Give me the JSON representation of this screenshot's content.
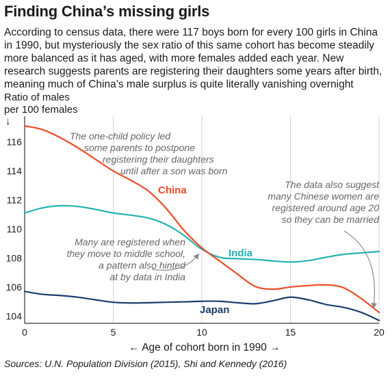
{
  "header": {
    "title": "Finding China’s missing girls",
    "subtitle": "According to census data, there were 117 boys born for every 100 girls in China in 1990, but mysteriously the sex ratio of this same cohort has become steadily more balanced as it has aged, with more females added each year. New research suggests parents are registering their daughters some years after birth, meaning much of China’s male surplus is quite literally vanishing overnight"
  },
  "footer": {
    "sources": "Sources: U.N. Population Division (2015), Shi and Kennedy (2016)"
  },
  "chart_data": {
    "type": "line",
    "ylabel": [
      "Ratio of males",
      "per 100 females"
    ],
    "y_arrow": "↓",
    "xlabel": "← Age of cohort born in 1990 →",
    "xlim": [
      0,
      20
    ],
    "ylim": [
      103.5,
      117.3
    ],
    "xticks": [
      0,
      5,
      10,
      15,
      20
    ],
    "yticks": [
      104,
      106,
      108,
      110,
      112,
      114,
      116
    ],
    "grid": "vertical",
    "x": [
      0,
      1,
      2,
      3,
      4,
      5,
      6,
      7,
      8,
      9,
      10,
      11,
      12,
      13,
      14,
      15,
      16,
      17,
      18,
      19,
      20
    ],
    "series": [
      {
        "name": "China",
        "color": "#ee4a24",
        "values": [
          117.1,
          116.85,
          116.3,
          115.6,
          114.8,
          114.0,
          113.35,
          112.6,
          111.4,
          109.9,
          108.7,
          107.8,
          106.9,
          106.05,
          105.85,
          106.0,
          106.1,
          106.15,
          105.95,
          105.2,
          104.25
        ]
      },
      {
        "name": "India",
        "color": "#22b2b2",
        "values": [
          111.1,
          111.45,
          111.6,
          111.55,
          111.35,
          111.1,
          110.95,
          110.75,
          110.3,
          109.55,
          108.6,
          108.05,
          107.95,
          107.9,
          107.8,
          107.72,
          107.82,
          108.05,
          108.25,
          108.35,
          108.45
        ]
      },
      {
        "name": "Japan",
        "color": "#1a3d6b",
        "values": [
          105.7,
          105.5,
          105.42,
          105.3,
          105.12,
          104.95,
          104.9,
          104.92,
          104.95,
          104.98,
          105.02,
          105.02,
          104.92,
          104.85,
          105.05,
          105.3,
          105.12,
          104.8,
          104.6,
          104.25,
          103.7
        ]
      }
    ],
    "annotations": [
      [
        "The one-child policy led",
        "some parents to postpone",
        "registering their daughters",
        "until after a son was born"
      ],
      [
        "Many are registered when",
        "they move to middle school,",
        "a pattern also hinted",
        "at by data in India"
      ],
      [
        "The data also suggest",
        "many Chinese women are",
        "registered around age 20",
        "so they can be married"
      ]
    ]
  }
}
